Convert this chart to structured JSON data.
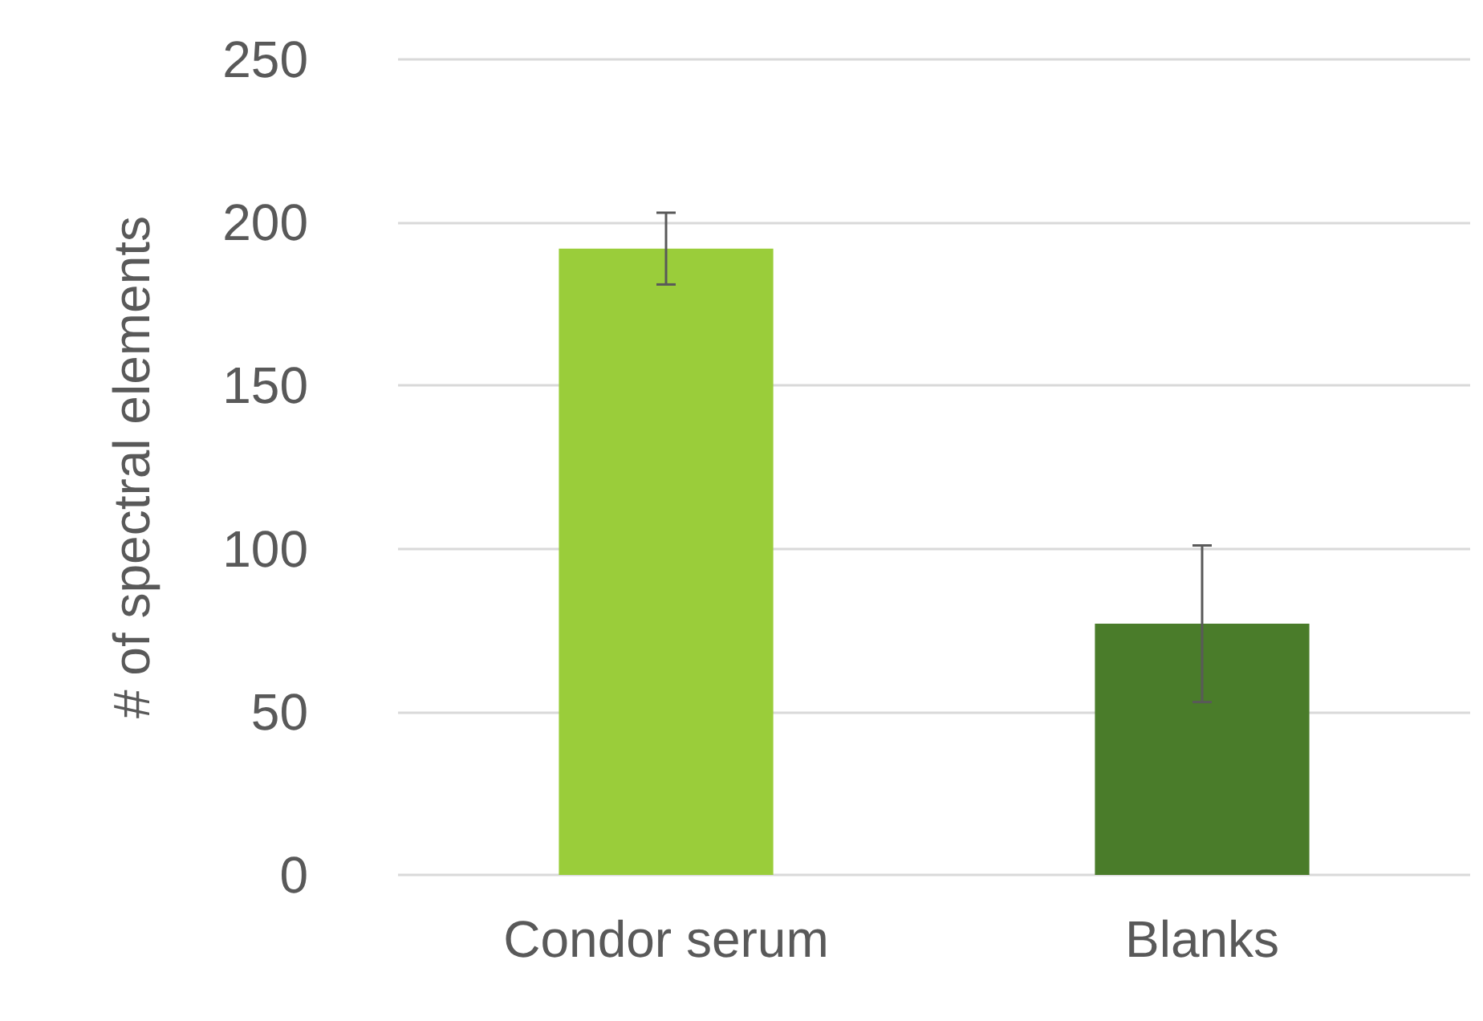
{
  "chart_data": {
    "type": "bar",
    "ylabel": "# of spectral elements",
    "categories": [
      "Condor serum",
      "Blanks"
    ],
    "values": [
      192,
      77
    ],
    "colors": [
      "#9acd3a",
      "#4a7c2a"
    ],
    "errors": [
      11,
      24
    ],
    "ylim": [
      0,
      250
    ],
    "yticks": [
      0,
      50,
      100,
      150,
      200,
      250
    ],
    "grid": "y"
  }
}
